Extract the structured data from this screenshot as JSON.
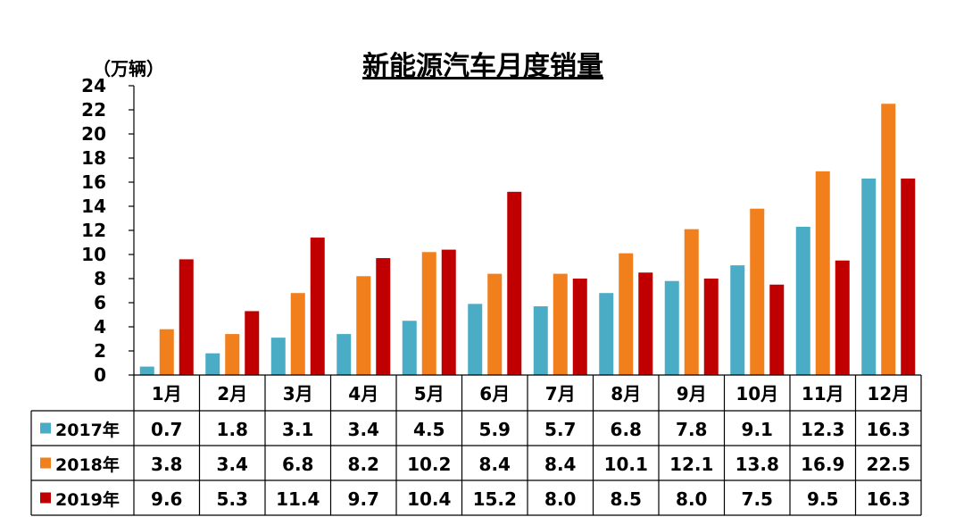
{
  "chart_data": {
    "type": "bar",
    "title": "新能源汽车月度销量",
    "unit_label": "（万辆）",
    "xlabel": "",
    "ylabel": "",
    "ylim": [
      0,
      24
    ],
    "yticks": [
      0,
      2,
      4,
      6,
      8,
      10,
      12,
      14,
      16,
      18,
      20,
      22,
      24
    ],
    "grid": false,
    "legend": "data-table-rows",
    "categories": [
      "1月",
      "2月",
      "3月",
      "4月",
      "5月",
      "6月",
      "7月",
      "8月",
      "9月",
      "10月",
      "11月",
      "12月"
    ],
    "series": [
      {
        "name": "2017年",
        "color": "#4BACC6",
        "values": [
          0.7,
          1.8,
          3.1,
          3.4,
          4.5,
          5.9,
          5.7,
          6.8,
          7.8,
          9.1,
          12.3,
          16.3
        ]
      },
      {
        "name": "2018年",
        "color": "#F07F1C",
        "values": [
          3.8,
          3.4,
          6.8,
          8.2,
          10.2,
          8.4,
          8.4,
          10.1,
          12.1,
          13.8,
          16.9,
          22.5
        ]
      },
      {
        "name": "2019年",
        "color": "#C00000",
        "values": [
          9.6,
          5.3,
          11.4,
          9.7,
          10.4,
          15.2,
          8.0,
          8.5,
          8.0,
          7.5,
          9.5,
          16.3
        ]
      }
    ]
  }
}
